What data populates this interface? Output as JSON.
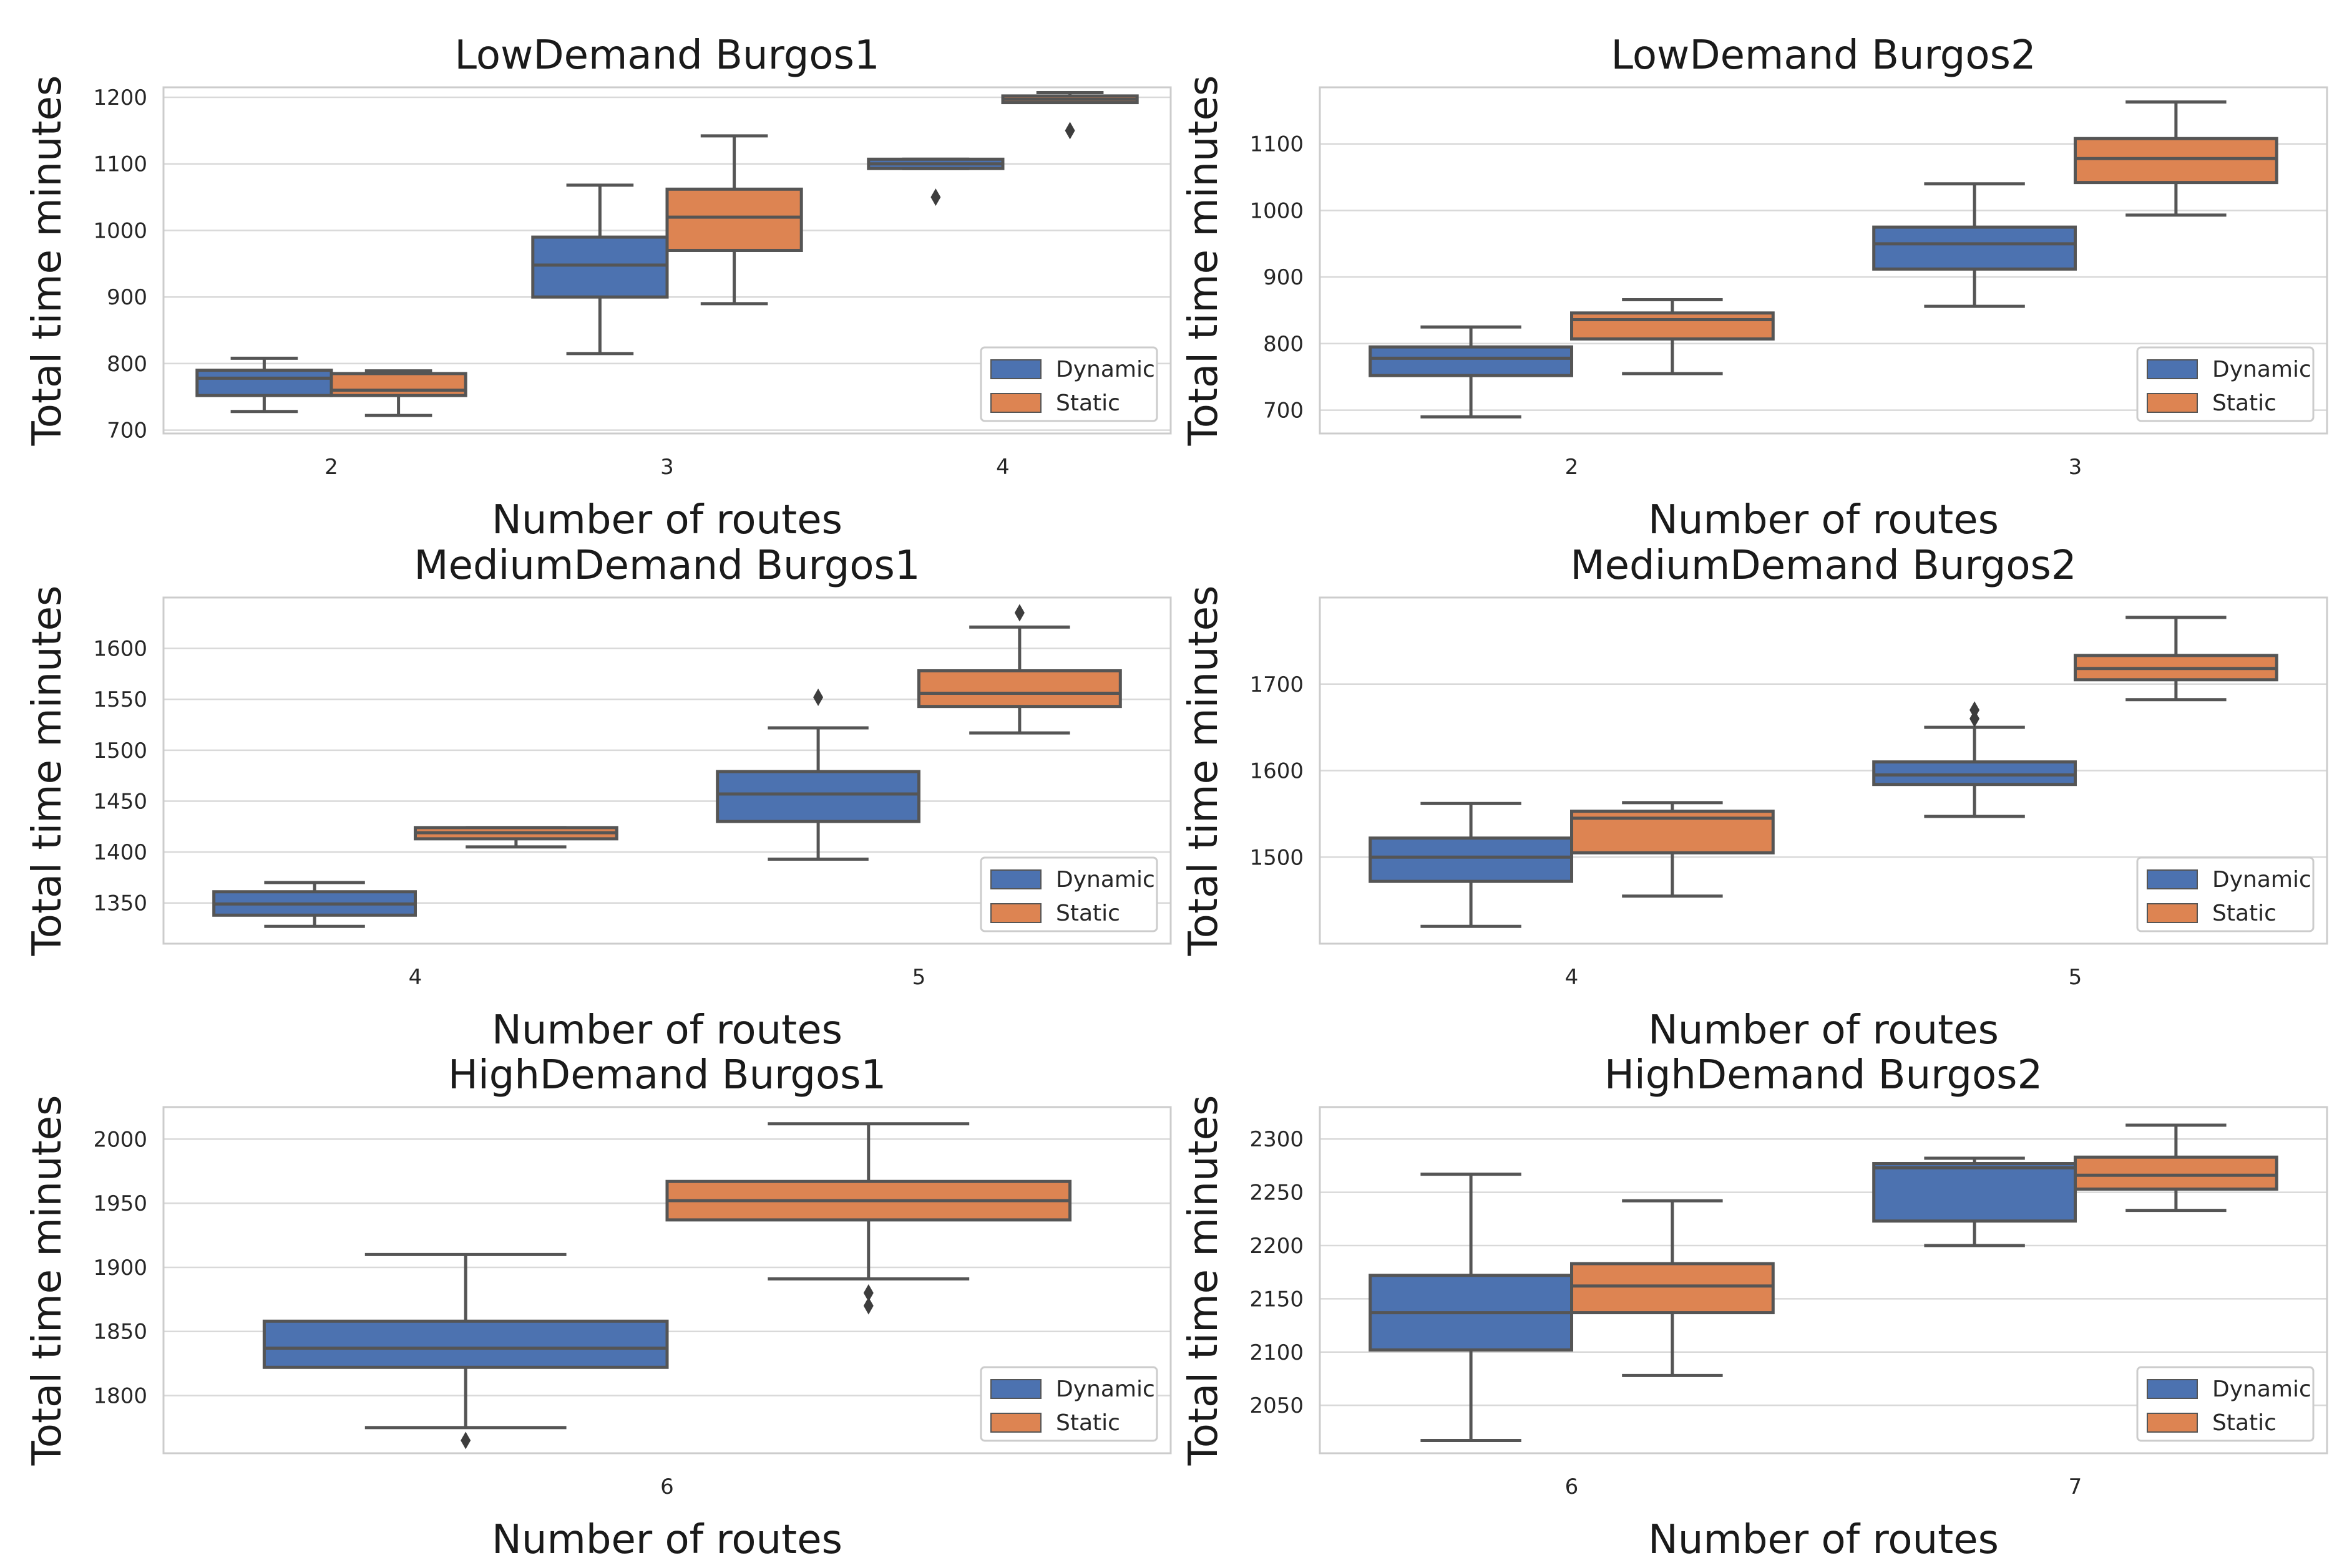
{
  "figure": {
    "colors": {
      "dynamic": "#4c72b0",
      "static": "#dd8452",
      "line": "#555555",
      "grid": "#d9d9d9",
      "frame": "#cccccc"
    }
  },
  "chart_data": [
    {
      "type": "box",
      "title": "LowDemand Burgos1",
      "xlabel": "Number of routes",
      "ylabel": "Total time minutes",
      "ylim": [
        695,
        1215
      ],
      "yticks": [
        700,
        800,
        900,
        1000,
        1100,
        1200
      ],
      "categories": [
        "2",
        "3",
        "4"
      ],
      "legend": {
        "position": "lower-right",
        "entries": [
          "Dynamic",
          "Static"
        ]
      },
      "series": [
        {
          "name": "Dynamic",
          "boxes": [
            {
              "whislo": 728,
              "q1": 752,
              "med": 778,
              "q3": 790,
              "whishi": 808,
              "fliers": []
            },
            {
              "whislo": 815,
              "q1": 900,
              "med": 948,
              "q3": 990,
              "whishi": 1068,
              "fliers": []
            },
            {
              "whislo": 1093,
              "q1": 1093,
              "med": 1100,
              "q3": 1107,
              "whishi": 1107,
              "fliers": [
                1050
              ]
            }
          ]
        },
        {
          "name": "Static",
          "boxes": [
            {
              "whislo": 722,
              "q1": 752,
              "med": 760,
              "q3": 785,
              "whishi": 789,
              "fliers": []
            },
            {
              "whislo": 890,
              "q1": 970,
              "med": 1020,
              "q3": 1062,
              "whishi": 1142,
              "fliers": []
            },
            {
              "whislo": 1192,
              "q1": 1192,
              "med": 1197,
              "q3": 1202,
              "whishi": 1207,
              "fliers": [
                1150
              ]
            }
          ]
        }
      ]
    },
    {
      "type": "box",
      "title": "LowDemand Burgos2",
      "xlabel": "Number of routes",
      "ylabel": "Total time minutes",
      "ylim": [
        665,
        1185
      ],
      "yticks": [
        700,
        800,
        900,
        1000,
        1100
      ],
      "categories": [
        "2",
        "3"
      ],
      "legend": {
        "position": "lower-right",
        "entries": [
          "Dynamic",
          "Static"
        ]
      },
      "series": [
        {
          "name": "Dynamic",
          "boxes": [
            {
              "whislo": 690,
              "q1": 752,
              "med": 778,
              "q3": 795,
              "whishi": 825,
              "fliers": []
            },
            {
              "whislo": 856,
              "q1": 912,
              "med": 950,
              "q3": 975,
              "whishi": 1040,
              "fliers": []
            }
          ]
        },
        {
          "name": "Static",
          "boxes": [
            {
              "whislo": 755,
              "q1": 807,
              "med": 836,
              "q3": 846,
              "whishi": 866,
              "fliers": []
            },
            {
              "whislo": 993,
              "q1": 1042,
              "med": 1078,
              "q3": 1108,
              "whishi": 1163,
              "fliers": []
            }
          ]
        }
      ]
    },
    {
      "type": "box",
      "title": "MediumDemand Burgos1",
      "xlabel": "Number of routes",
      "ylabel": "Total time minutes",
      "ylim": [
        1310,
        1650
      ],
      "yticks": [
        1350,
        1400,
        1450,
        1500,
        1550,
        1600
      ],
      "categories": [
        "4",
        "5"
      ],
      "legend": {
        "position": "lower-right",
        "entries": [
          "Dynamic",
          "Static"
        ]
      },
      "series": [
        {
          "name": "Dynamic",
          "boxes": [
            {
              "whislo": 1327,
              "q1": 1338,
              "med": 1349,
              "q3": 1361,
              "whishi": 1370,
              "fliers": []
            },
            {
              "whislo": 1393,
              "q1": 1430,
              "med": 1457,
              "q3": 1479,
              "whishi": 1522,
              "fliers": [
                1552
              ]
            }
          ]
        },
        {
          "name": "Static",
          "boxes": [
            {
              "whislo": 1405,
              "q1": 1413,
              "med": 1419,
              "q3": 1424,
              "whishi": 1424,
              "fliers": []
            },
            {
              "whislo": 1517,
              "q1": 1543,
              "med": 1556,
              "q3": 1578,
              "whishi": 1621,
              "fliers": [
                1635
              ]
            }
          ]
        }
      ]
    },
    {
      "type": "box",
      "title": "MediumDemand Burgos2",
      "xlabel": "Number of routes",
      "ylabel": "Total time minutes",
      "ylim": [
        1400,
        1800
      ],
      "yticks": [
        1500,
        1600,
        1700
      ],
      "categories": [
        "4",
        "5"
      ],
      "legend": {
        "position": "lower-right",
        "entries": [
          "Dynamic",
          "Static"
        ]
      },
      "series": [
        {
          "name": "Dynamic",
          "boxes": [
            {
              "whislo": 1420,
              "q1": 1472,
              "med": 1500,
              "q3": 1522,
              "whishi": 1562,
              "fliers": []
            },
            {
              "whislo": 1547,
              "q1": 1584,
              "med": 1595,
              "q3": 1610,
              "whishi": 1650,
              "fliers": [
                1660,
                1670
              ]
            }
          ]
        },
        {
          "name": "Static",
          "boxes": [
            {
              "whislo": 1455,
              "q1": 1505,
              "med": 1545,
              "q3": 1553,
              "whishi": 1563,
              "fliers": []
            },
            {
              "whislo": 1682,
              "q1": 1705,
              "med": 1718,
              "q3": 1733,
              "whishi": 1777,
              "fliers": []
            }
          ]
        }
      ]
    },
    {
      "type": "box",
      "title": "HighDemand Burgos1",
      "xlabel": "Number of routes",
      "ylabel": "Total time minutes",
      "ylim": [
        1755,
        2025
      ],
      "yticks": [
        1800,
        1850,
        1900,
        1950,
        2000
      ],
      "categories": [
        "6"
      ],
      "legend": {
        "position": "lower-right",
        "entries": [
          "Dynamic",
          "Static"
        ]
      },
      "series": [
        {
          "name": "Dynamic",
          "boxes": [
            {
              "whislo": 1775,
              "q1": 1822,
              "med": 1837,
              "q3": 1858,
              "whishi": 1910,
              "fliers": [
                1765
              ]
            }
          ]
        },
        {
          "name": "Static",
          "boxes": [
            {
              "whislo": 1891,
              "q1": 1937,
              "med": 1952,
              "q3": 1967,
              "whishi": 2012,
              "fliers": [
                1870,
                1880
              ]
            }
          ]
        }
      ]
    },
    {
      "type": "box",
      "title": "HighDemand Burgos2",
      "xlabel": "Number of routes",
      "ylabel": "Total time minutes",
      "ylim": [
        2005,
        2330
      ],
      "yticks": [
        2050,
        2100,
        2150,
        2200,
        2250,
        2300
      ],
      "categories": [
        "6",
        "7"
      ],
      "legend": {
        "position": "lower-right",
        "entries": [
          "Dynamic",
          "Static"
        ]
      },
      "series": [
        {
          "name": "Dynamic",
          "boxes": [
            {
              "whislo": 2017,
              "q1": 2102,
              "med": 2137,
              "q3": 2172,
              "whishi": 2267,
              "fliers": []
            },
            {
              "whislo": 2200,
              "q1": 2223,
              "med": 2273,
              "q3": 2277,
              "whishi": 2282,
              "fliers": []
            }
          ]
        },
        {
          "name": "Static",
          "boxes": [
            {
              "whislo": 2078,
              "q1": 2137,
              "med": 2162,
              "q3": 2183,
              "whishi": 2242,
              "fliers": []
            },
            {
              "whislo": 2233,
              "q1": 2253,
              "med": 2266,
              "q3": 2283,
              "whishi": 2313,
              "fliers": []
            }
          ]
        }
      ]
    }
  ]
}
